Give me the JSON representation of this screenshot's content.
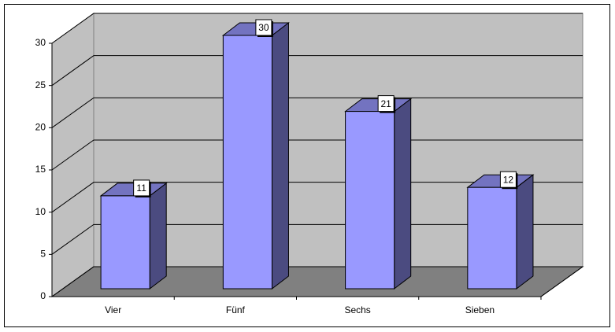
{
  "chart_data": {
    "type": "bar3d",
    "categories": [
      "Vier",
      "Fünf",
      "Sechs",
      "Sieben"
    ],
    "values": [
      11,
      30,
      21,
      12
    ],
    "color": "#9999ff",
    "ylim": [
      0,
      30
    ],
    "yticks": [
      0,
      5,
      10,
      15,
      20,
      25,
      30
    ],
    "grid": true
  }
}
